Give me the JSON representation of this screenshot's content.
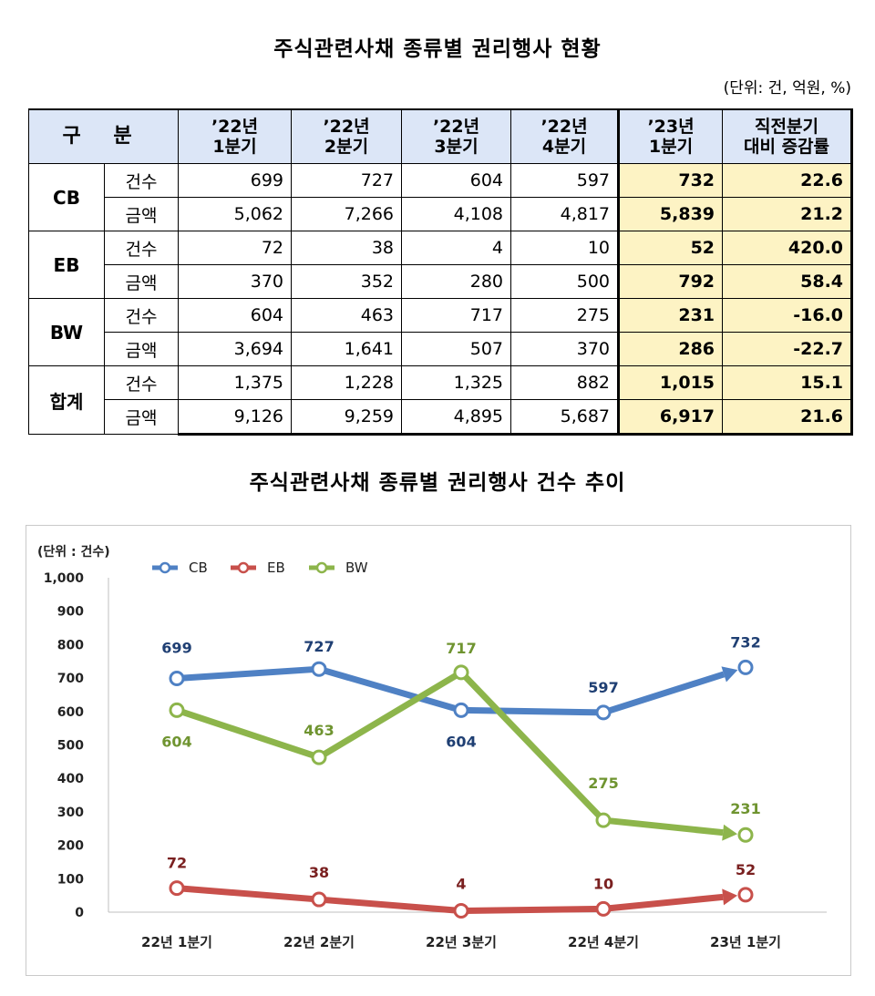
{
  "title_table": "주식관련사채 종류별 권리행사 현황",
  "unit_note": "(단위: 건, 억원, %)",
  "table": {
    "header": {
      "group": "구 분",
      "cols": [
        "’22년\n1분기",
        "’22년\n2분기",
        "’22년\n3분기",
        "’22년\n4분기",
        "’23년\n1분기",
        "직전분기\n대비 증감률"
      ]
    },
    "groups": [
      {
        "name": "CB",
        "rows": [
          {
            "sub": "건수",
            "vals": [
              "699",
              "727",
              "604",
              "597",
              "732",
              "22.6"
            ]
          },
          {
            "sub": "금액",
            "vals": [
              "5,062",
              "7,266",
              "4,108",
              "4,817",
              "5,839",
              "21.2"
            ]
          }
        ]
      },
      {
        "name": "EB",
        "rows": [
          {
            "sub": "건수",
            "vals": [
              "72",
              "38",
              "4",
              "10",
              "52",
              "420.0"
            ]
          },
          {
            "sub": "금액",
            "vals": [
              "370",
              "352",
              "280",
              "500",
              "792",
              "58.4"
            ]
          }
        ]
      },
      {
        "name": "BW",
        "rows": [
          {
            "sub": "건수",
            "vals": [
              "604",
              "463",
              "717",
              "275",
              "231",
              "-16.0"
            ]
          },
          {
            "sub": "금액",
            "vals": [
              "3,694",
              "1,641",
              "507",
              "370",
              "286",
              "-22.7"
            ]
          }
        ]
      },
      {
        "name": "합계",
        "rows": [
          {
            "sub": "건수",
            "vals": [
              "1,375",
              "1,228",
              "1,325",
              "882",
              "1,015",
              "15.1"
            ]
          },
          {
            "sub": "금액",
            "vals": [
              "9,126",
              "9,259",
              "4,895",
              "5,687",
              "6,917",
              "21.6"
            ]
          }
        ]
      }
    ],
    "highlight_color": "#fdf3c4",
    "header_color": "#dce6f7"
  },
  "title_chart": "주식관련사채 종류별 권리행사 건수 추이",
  "chart_data": {
    "type": "line",
    "unit_label": "(단위 : 건수)",
    "categories": [
      "22년 1분기",
      "22년 2분기",
      "22년 3분기",
      "22년 4분기",
      "23년 1분기"
    ],
    "ylim": [
      0,
      1000
    ],
    "yticks": [
      "0",
      "100",
      "200",
      "300",
      "400",
      "500",
      "600",
      "700",
      "800",
      "900",
      "1,000"
    ],
    "grid": false,
    "legend": "top-left",
    "series": [
      {
        "name": "CB",
        "color": "#4f81c4",
        "label_color": "#1f3f73",
        "values": [
          699,
          727,
          604,
          597,
          732
        ]
      },
      {
        "name": "EB",
        "color": "#c8504b",
        "label_color": "#7a2020",
        "values": [
          72,
          38,
          4,
          10,
          52
        ]
      },
      {
        "name": "BW",
        "color": "#8db54b",
        "label_color": "#6f9430",
        "values": [
          604,
          463,
          717,
          275,
          231
        ]
      }
    ]
  }
}
